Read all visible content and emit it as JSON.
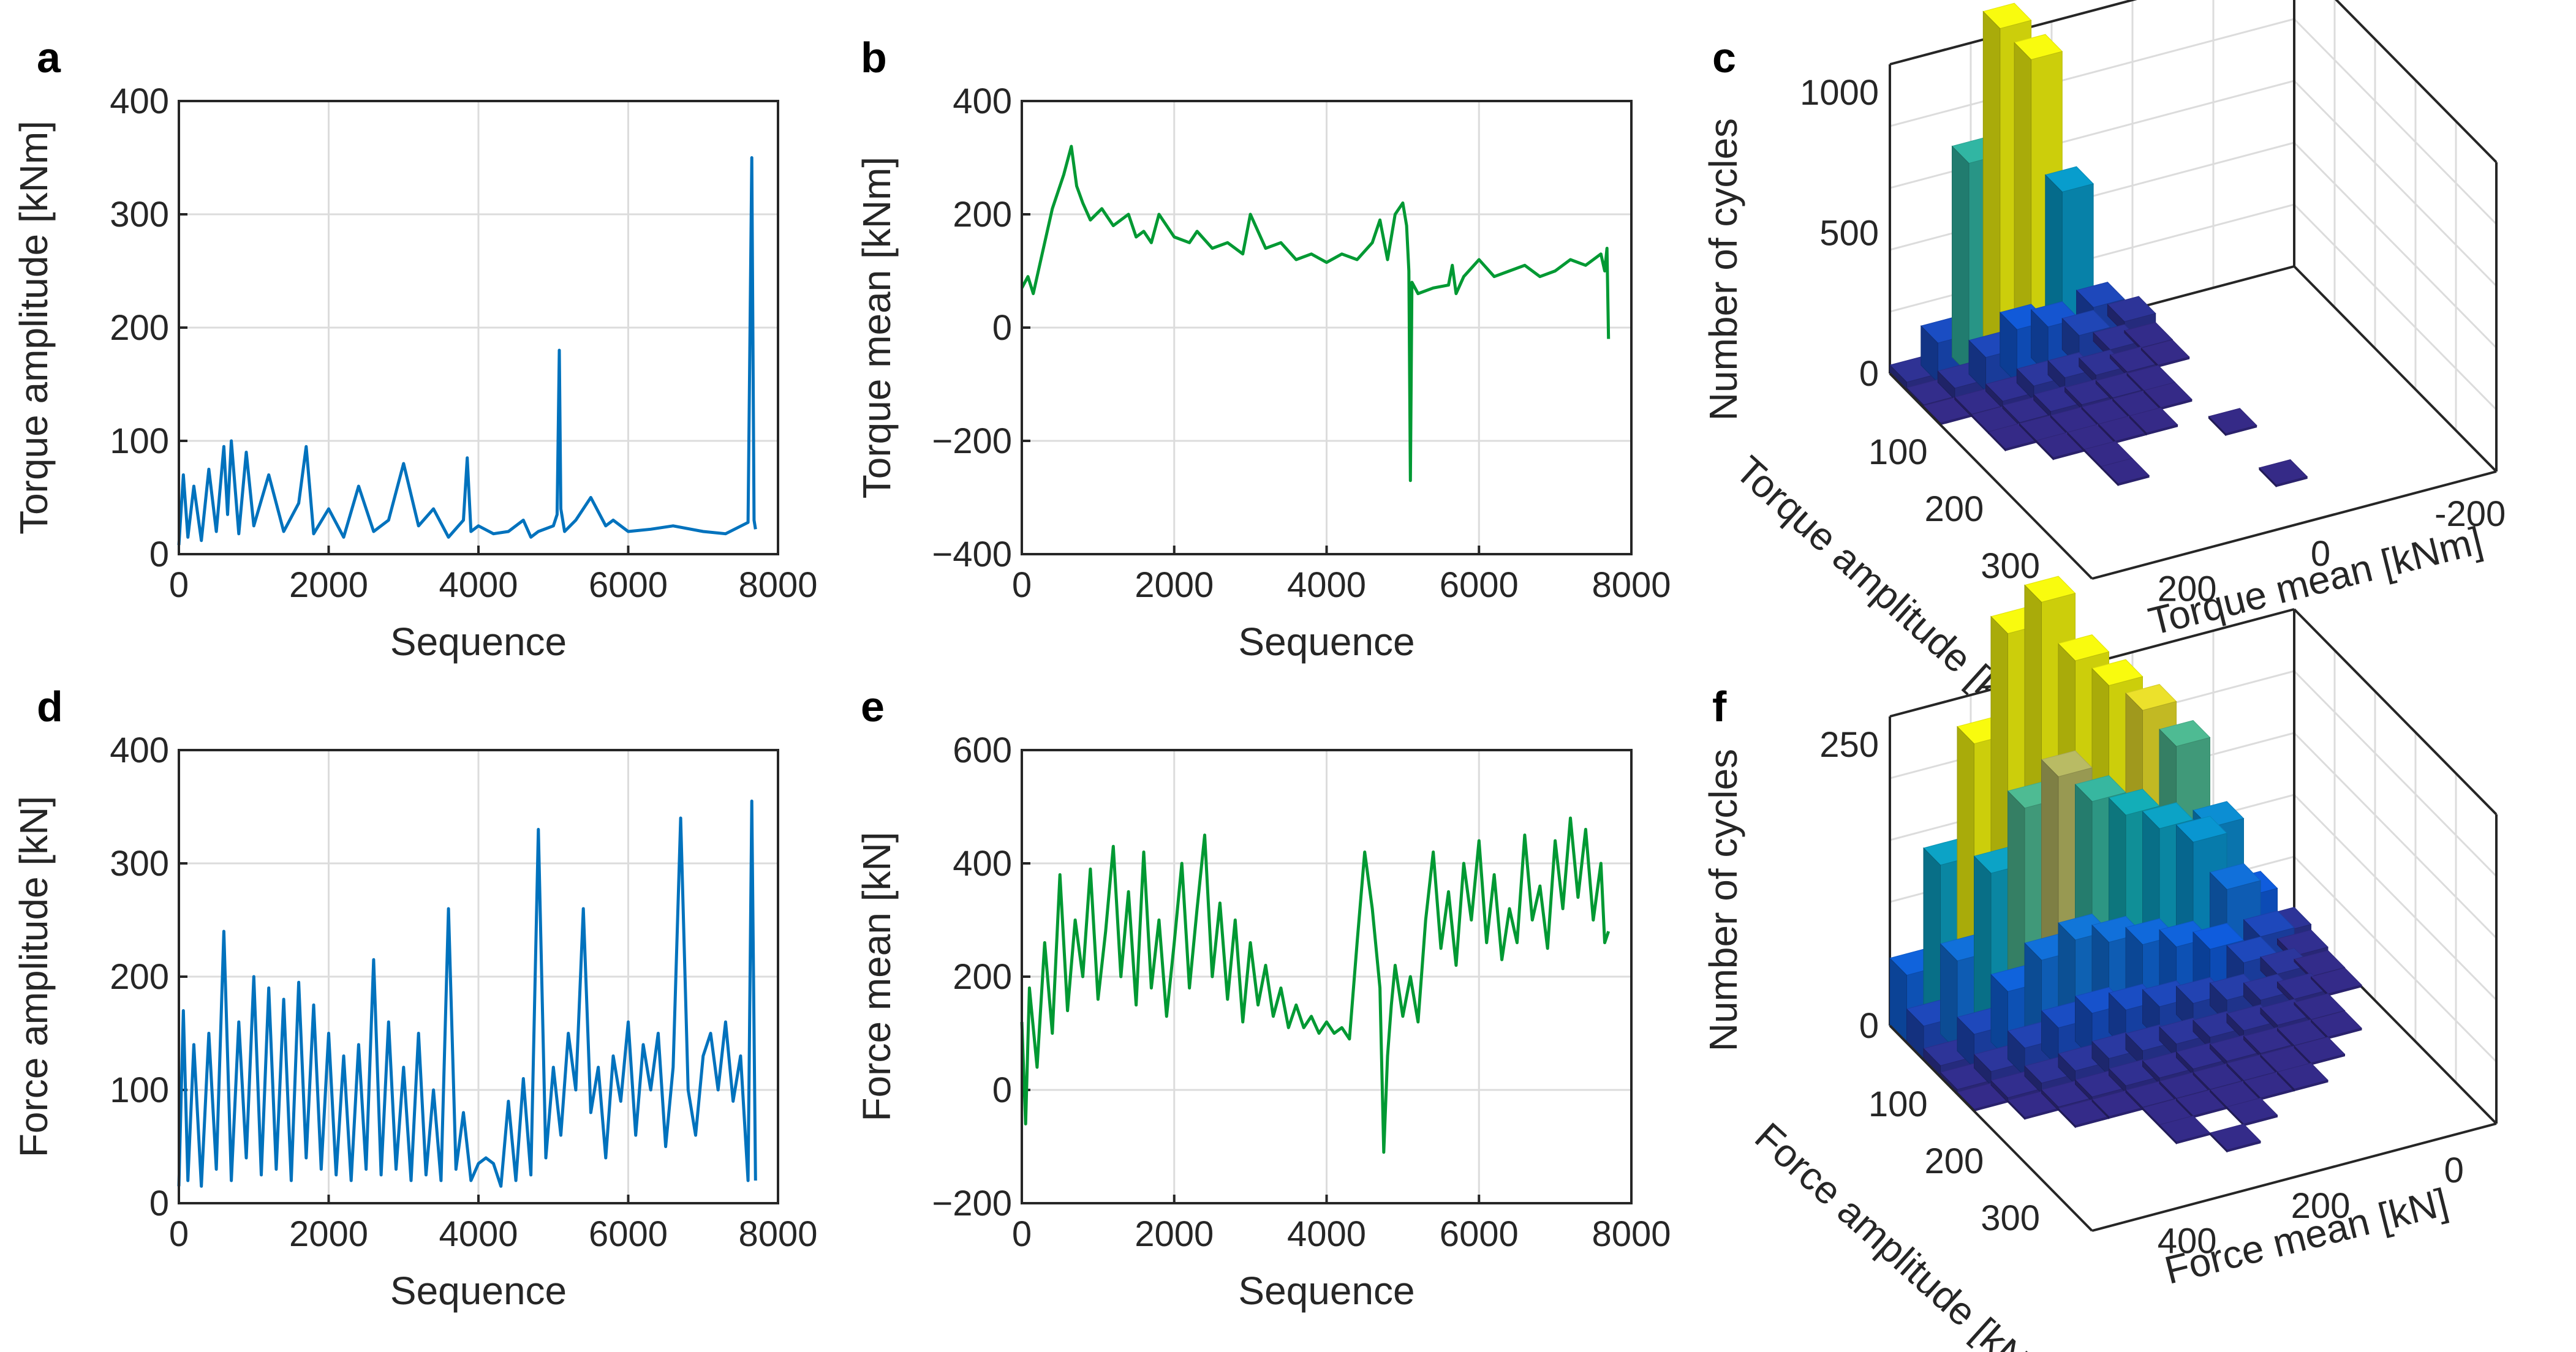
{
  "panels": {
    "a": {
      "label": "a"
    },
    "b": {
      "label": "b"
    },
    "c": {
      "label": "c"
    },
    "d": {
      "label": "d"
    },
    "e": {
      "label": "e"
    },
    "f": {
      "label": "f"
    }
  },
  "colors": {
    "blue": "#0072BD",
    "green": "#009933",
    "grid": "#dcdcdc",
    "axis": "#262626"
  },
  "chart_data": [
    {
      "id": "a",
      "type": "line",
      "title": "",
      "xlabel": "Sequence",
      "ylabel": "Torque amplitude [kNm]",
      "xlim": [
        0,
        8000
      ],
      "ylim": [
        0,
        400
      ],
      "xticks": [
        0,
        2000,
        4000,
        6000,
        8000
      ],
      "yticks": [
        0,
        100,
        200,
        300,
        400
      ],
      "xtick_labels": [
        "0",
        "2000",
        "4000",
        "6000",
        "8000"
      ],
      "ytick_labels": [
        "0",
        "100",
        "200",
        "300",
        "400"
      ],
      "color": "#0072BD",
      "series": [
        {
          "name": "Torque amplitude",
          "x": [
            0,
            60,
            120,
            200,
            300,
            400,
            500,
            600,
            650,
            700,
            800,
            900,
            1000,
            1200,
            1400,
            1600,
            1700,
            1800,
            2000,
            2200,
            2400,
            2600,
            2800,
            3000,
            3200,
            3400,
            3600,
            3800,
            3850,
            3900,
            4000,
            4200,
            4400,
            4600,
            4700,
            4800,
            5000,
            5050,
            5080,
            5100,
            5150,
            5300,
            5500,
            5700,
            5800,
            6000,
            6300,
            6600,
            7000,
            7300,
            7600,
            7650,
            7680,
            7700
          ],
          "y": [
            8,
            70,
            15,
            60,
            12,
            75,
            20,
            95,
            35,
            100,
            18,
            90,
            25,
            70,
            20,
            45,
            95,
            18,
            40,
            15,
            60,
            20,
            30,
            80,
            25,
            40,
            15,
            30,
            85,
            20,
            25,
            18,
            20,
            30,
            15,
            20,
            25,
            35,
            180,
            40,
            20,
            30,
            50,
            25,
            30,
            20,
            22,
            25,
            20,
            18,
            28,
            350,
            30,
            22
          ]
        }
      ]
    },
    {
      "id": "b",
      "type": "line",
      "title": "",
      "xlabel": "Sequence",
      "ylabel": "Torque mean [kNm]",
      "xlim": [
        0,
        8000
      ],
      "ylim": [
        -400,
        400
      ],
      "xticks": [
        0,
        2000,
        4000,
        6000,
        8000
      ],
      "yticks": [
        -400,
        -200,
        0,
        200,
        400
      ],
      "xtick_labels": [
        "0",
        "2000",
        "4000",
        "6000",
        "8000"
      ],
      "ytick_labels": [
        "−400",
        "−200",
        "0",
        "200",
        "400"
      ],
      "color": "#009933",
      "series": [
        {
          "name": "Torque mean",
          "x": [
            0,
            80,
            150,
            250,
            400,
            550,
            650,
            720,
            800,
            900,
            1050,
            1200,
            1400,
            1500,
            1600,
            1700,
            1800,
            2000,
            2200,
            2300,
            2500,
            2700,
            2900,
            3000,
            3200,
            3400,
            3600,
            3800,
            4000,
            4200,
            4400,
            4600,
            4700,
            4800,
            4900,
            5000,
            5050,
            5080,
            5100,
            5120,
            5200,
            5400,
            5600,
            5650,
            5700,
            5800,
            6000,
            6200,
            6400,
            6600,
            6800,
            7000,
            7200,
            7400,
            7600,
            7650,
            7680,
            7700
          ],
          "y": [
            70,
            90,
            60,
            120,
            210,
            270,
            320,
            250,
            220,
            190,
            210,
            180,
            200,
            160,
            170,
            150,
            200,
            160,
            150,
            170,
            140,
            150,
            130,
            200,
            140,
            150,
            120,
            130,
            115,
            130,
            120,
            150,
            190,
            120,
            200,
            220,
            180,
            100,
            -270,
            80,
            60,
            70,
            75,
            110,
            60,
            90,
            120,
            90,
            100,
            110,
            90,
            100,
            120,
            110,
            130,
            100,
            140,
            -20
          ]
        }
      ]
    },
    {
      "id": "d",
      "type": "line",
      "title": "",
      "xlabel": "Sequence",
      "ylabel": "Force amplitude [kN]",
      "xlim": [
        0,
        8000
      ],
      "ylim": [
        0,
        400
      ],
      "xticks": [
        0,
        2000,
        4000,
        6000,
        8000
      ],
      "yticks": [
        0,
        100,
        200,
        300,
        400
      ],
      "xtick_labels": [
        "0",
        "2000",
        "4000",
        "6000",
        "8000"
      ],
      "ytick_labels": [
        "0",
        "100",
        "200",
        "300",
        "400"
      ],
      "color": "#0072BD",
      "series": [
        {
          "name": "Force amplitude",
          "x": [
            0,
            60,
            120,
            200,
            300,
            400,
            500,
            600,
            700,
            800,
            900,
            1000,
            1100,
            1200,
            1300,
            1400,
            1500,
            1600,
            1700,
            1800,
            1900,
            2000,
            2100,
            2200,
            2300,
            2400,
            2500,
            2600,
            2700,
            2800,
            2900,
            3000,
            3100,
            3200,
            3300,
            3400,
            3500,
            3600,
            3700,
            3800,
            3900,
            4000,
            4100,
            4200,
            4300,
            4400,
            4500,
            4600,
            4700,
            4800,
            4900,
            5000,
            5100,
            5200,
            5300,
            5400,
            5500,
            5600,
            5700,
            5800,
            5900,
            6000,
            6100,
            6200,
            6300,
            6400,
            6500,
            6600,
            6700,
            6800,
            6900,
            7000,
            7100,
            7200,
            7300,
            7400,
            7500,
            7600,
            7650,
            7700
          ],
          "y": [
            15,
            170,
            20,
            140,
            15,
            150,
            30,
            240,
            20,
            160,
            40,
            200,
            25,
            190,
            30,
            180,
            20,
            195,
            40,
            175,
            30,
            150,
            25,
            130,
            20,
            140,
            30,
            215,
            25,
            160,
            30,
            120,
            20,
            150,
            25,
            100,
            20,
            260,
            30,
            80,
            20,
            35,
            40,
            35,
            15,
            90,
            20,
            110,
            25,
            330,
            40,
            120,
            60,
            150,
            100,
            260,
            80,
            120,
            40,
            130,
            90,
            160,
            60,
            140,
            100,
            150,
            50,
            120,
            340,
            100,
            60,
            130,
            150,
            100,
            160,
            90,
            130,
            20,
            355,
            20
          ]
        }
      ]
    },
    {
      "id": "e",
      "type": "line",
      "title": "",
      "xlabel": "Sequence",
      "ylabel": "Force mean [kN]",
      "xlim": [
        0,
        8000
      ],
      "ylim": [
        -200,
        600
      ],
      "xticks": [
        0,
        2000,
        4000,
        6000,
        8000
      ],
      "yticks": [
        -200,
        0,
        200,
        400,
        600
      ],
      "xtick_labels": [
        "0",
        "2000",
        "4000",
        "6000",
        "8000"
      ],
      "ytick_labels": [
        "−200",
        "0",
        "200",
        "400",
        "600"
      ],
      "color": "#009933",
      "series": [
        {
          "name": "Force mean",
          "x": [
            0,
            50,
            100,
            200,
            300,
            400,
            500,
            600,
            700,
            800,
            900,
            1000,
            1100,
            1200,
            1300,
            1400,
            1500,
            1600,
            1700,
            1800,
            1900,
            2000,
            2100,
            2200,
            2300,
            2400,
            2500,
            2600,
            2700,
            2800,
            2900,
            3000,
            3100,
            3200,
            3300,
            3400,
            3500,
            3600,
            3700,
            3800,
            3900,
            4000,
            4100,
            4200,
            4300,
            4400,
            4500,
            4600,
            4700,
            4750,
            4800,
            4850,
            4900,
            5000,
            5100,
            5200,
            5300,
            5400,
            5500,
            5600,
            5700,
            5800,
            5900,
            6000,
            6100,
            6200,
            6300,
            6400,
            6500,
            6600,
            6700,
            6800,
            6900,
            7000,
            7100,
            7200,
            7300,
            7400,
            7500,
            7600,
            7650,
            7700
          ],
          "y": [
            120,
            -60,
            180,
            40,
            260,
            100,
            380,
            140,
            300,
            200,
            390,
            160,
            280,
            430,
            200,
            350,
            150,
            420,
            180,
            300,
            130,
            260,
            400,
            180,
            320,
            450,
            200,
            330,
            160,
            300,
            120,
            260,
            150,
            220,
            130,
            180,
            110,
            150,
            110,
            130,
            100,
            120,
            100,
            110,
            90,
            260,
            420,
            320,
            180,
            -110,
            60,
            150,
            220,
            130,
            200,
            120,
            300,
            420,
            250,
            350,
            220,
            400,
            300,
            440,
            260,
            380,
            230,
            320,
            260,
            450,
            300,
            360,
            250,
            440,
            320,
            480,
            340,
            460,
            300,
            400,
            260,
            280
          ]
        }
      ]
    },
    {
      "id": "c",
      "type": "bar3d",
      "title": "",
      "xlabel": "Torque mean [kNm]",
      "ylabel": "Torque amplitude [kNm]",
      "zlabel": "Number of cycles",
      "xticks": [
        "-200",
        "0",
        "200"
      ],
      "yticks": [
        "100",
        "200",
        "300"
      ],
      "zticks": [
        "0",
        "500",
        "1000"
      ],
      "mean_bins": [
        "-275",
        "-225",
        "-175",
        "-125",
        "-75",
        "-25",
        "25",
        "75",
        "125",
        "175",
        "225",
        "275",
        "325"
      ],
      "amplitude_bins": [
        "15",
        "45",
        "75",
        "105",
        "135",
        "165",
        "195",
        "225",
        "255",
        "285",
        "315",
        "345"
      ],
      "counts": [
        [
          0,
          0,
          0,
          0,
          0,
          40,
          120,
          560,
          1060,
          1200,
          750,
          140,
          30
        ],
        [
          0,
          0,
          0,
          0,
          0,
          8,
          30,
          110,
          170,
          190,
          120,
          40,
          10
        ],
        [
          0,
          0,
          0,
          0,
          0,
          2,
          12,
          30,
          50,
          50,
          25,
          8,
          2
        ],
        [
          0,
          0,
          0,
          0,
          0,
          0,
          4,
          10,
          15,
          20,
          10,
          3,
          0
        ],
        [
          0,
          0,
          0,
          0,
          0,
          0,
          1,
          3,
          5,
          5,
          3,
          1,
          0
        ],
        [
          0,
          0,
          0,
          0,
          0,
          0,
          0,
          1,
          1,
          2,
          1,
          0,
          0
        ],
        [
          0,
          0,
          0,
          0,
          0,
          1,
          0,
          0,
          0,
          1,
          0,
          0,
          0
        ],
        [
          0,
          0,
          0,
          0,
          0,
          0,
          0,
          0,
          0,
          1,
          0,
          0,
          0
        ],
        [
          0,
          0,
          0,
          0,
          0,
          0,
          0,
          0,
          0,
          0,
          0,
          0,
          0
        ],
        [
          0,
          0,
          0,
          0,
          0,
          1,
          0,
          0,
          0,
          0,
          0,
          0,
          0
        ],
        [
          0,
          0,
          0,
          0,
          0,
          0,
          0,
          0,
          0,
          0,
          0,
          0,
          0
        ],
        [
          0,
          0,
          0,
          0,
          0,
          0,
          0,
          0,
          0,
          0,
          0,
          0,
          0
        ]
      ],
      "zmax": 1000
    },
    {
      "id": "f",
      "type": "bar3d",
      "title": "",
      "xlabel": "Force mean [kN]",
      "ylabel": "Force amplitude [kN]",
      "zlabel": "Number of cycles",
      "xticks": [
        "0",
        "200",
        "400"
      ],
      "yticks": [
        "100",
        "200",
        "300"
      ],
      "zticks": [
        "0",
        "250"
      ],
      "mean_bins": [
        "-25",
        "25",
        "75",
        "125",
        "175",
        "225",
        "275",
        "325",
        "375",
        "425",
        "475",
        "525"
      ],
      "amplitude_bins": [
        "15",
        "45",
        "75",
        "105",
        "135",
        "165",
        "195",
        "225",
        "255",
        "285",
        "315",
        "345"
      ],
      "counts": [
        [
          10,
          50,
          120,
          200,
          240,
          270,
          300,
          360,
          340,
          250,
          150,
          60
        ],
        [
          5,
          30,
          80,
          130,
          150,
          170,
          190,
          220,
          200,
          150,
          80,
          30
        ],
        [
          2,
          12,
          30,
          50,
          60,
          70,
          80,
          90,
          80,
          60,
          30,
          10
        ],
        [
          1,
          5,
          12,
          20,
          25,
          30,
          35,
          40,
          35,
          25,
          12,
          4
        ],
        [
          0,
          2,
          5,
          8,
          10,
          12,
          14,
          15,
          12,
          9,
          4,
          1
        ],
        [
          0,
          1,
          2,
          3,
          4,
          5,
          5,
          6,
          4,
          3,
          1,
          0
        ],
        [
          0,
          0,
          1,
          1,
          2,
          2,
          2,
          2,
          1,
          1,
          0,
          0
        ],
        [
          0,
          0,
          0,
          1,
          1,
          1,
          1,
          1,
          0,
          0,
          0,
          0
        ],
        [
          0,
          0,
          0,
          0,
          0,
          1,
          0,
          1,
          0,
          0,
          0,
          0
        ],
        [
          0,
          0,
          0,
          0,
          0,
          0,
          1,
          0,
          0,
          0,
          0,
          0
        ],
        [
          0,
          0,
          0,
          0,
          0,
          0,
          0,
          0,
          0,
          0,
          0,
          0
        ],
        [
          0,
          0,
          0,
          0,
          0,
          0,
          0,
          0,
          0,
          0,
          0,
          0
        ]
      ],
      "zmax": 250
    }
  ]
}
